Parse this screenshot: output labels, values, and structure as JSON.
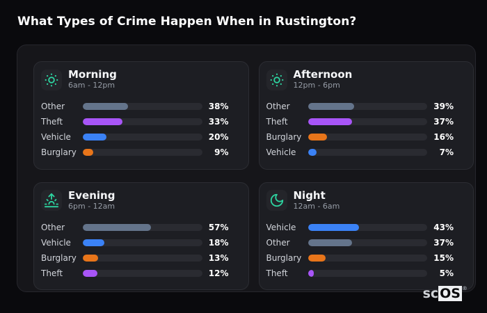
{
  "header": {
    "title": "What Types of Crime Happen When in Rustington?"
  },
  "brand": {
    "prefix": "sc",
    "suffix": "OS",
    "trademark": "®"
  },
  "colors": {
    "accent_teal": "#2dd4a0",
    "bar_other": "#64748b",
    "bar_theft": "#a855f7",
    "bar_vehicle": "#3b82f6",
    "bar_burglary": "#e8751a",
    "page_background": "#0a0a0d",
    "board_background": "#16161a",
    "panel_background": "#1d1e23",
    "track_background": "#2a2b31"
  },
  "chart_data": [
    {
      "id": "morning",
      "type": "bar",
      "orientation": "horizontal",
      "title": "Morning",
      "subtitle": "6am - 12pm",
      "icon": "sun-icon",
      "unit": "%",
      "xlim": [
        0,
        100
      ],
      "categories": [
        "Other",
        "Theft",
        "Vehicle",
        "Burglary"
      ],
      "values": [
        38,
        33,
        20,
        9
      ],
      "bar_colors": [
        "#64748b",
        "#a855f7",
        "#3b82f6",
        "#e8751a"
      ]
    },
    {
      "id": "afternoon",
      "type": "bar",
      "orientation": "horizontal",
      "title": "Afternoon",
      "subtitle": "12pm - 6pm",
      "icon": "sun-icon",
      "unit": "%",
      "xlim": [
        0,
        100
      ],
      "categories": [
        "Other",
        "Theft",
        "Burglary",
        "Vehicle"
      ],
      "values": [
        39,
        37,
        16,
        7
      ],
      "bar_colors": [
        "#64748b",
        "#a855f7",
        "#e8751a",
        "#3b82f6"
      ]
    },
    {
      "id": "evening",
      "type": "bar",
      "orientation": "horizontal",
      "title": "Evening",
      "subtitle": "6pm - 12am",
      "icon": "sunrise-icon",
      "unit": "%",
      "xlim": [
        0,
        100
      ],
      "categories": [
        "Other",
        "Vehicle",
        "Burglary",
        "Theft"
      ],
      "values": [
        57,
        18,
        13,
        12
      ],
      "bar_colors": [
        "#64748b",
        "#3b82f6",
        "#e8751a",
        "#a855f7"
      ]
    },
    {
      "id": "night",
      "type": "bar",
      "orientation": "horizontal",
      "title": "Night",
      "subtitle": "12am - 6am",
      "icon": "moon-icon",
      "unit": "%",
      "xlim": [
        0,
        100
      ],
      "categories": [
        "Vehicle",
        "Other",
        "Burglary",
        "Theft"
      ],
      "values": [
        43,
        37,
        15,
        5
      ],
      "bar_colors": [
        "#3b82f6",
        "#64748b",
        "#e8751a",
        "#a855f7"
      ]
    }
  ]
}
